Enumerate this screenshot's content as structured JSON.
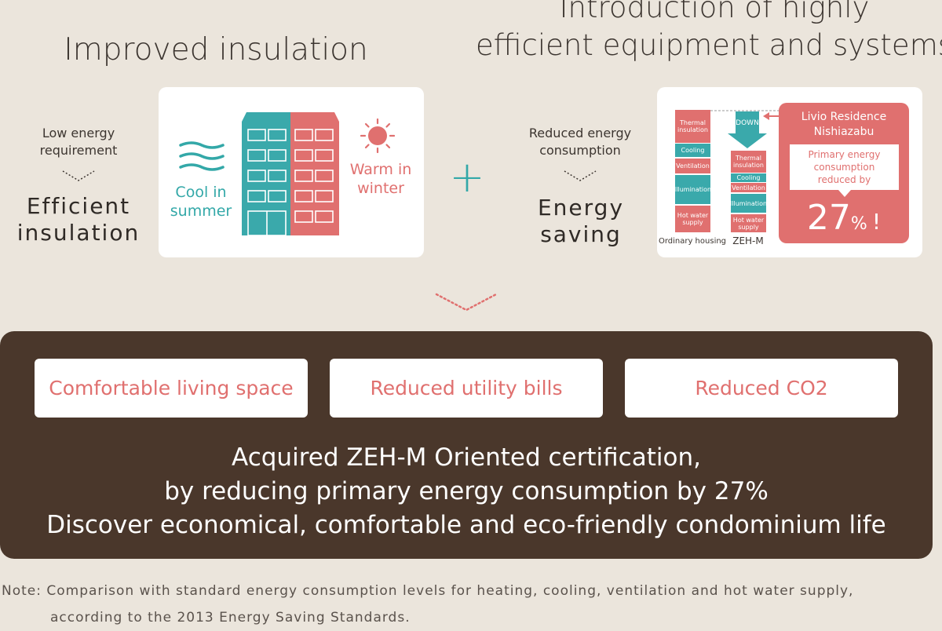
{
  "left_section": {
    "title": "Improved insulation",
    "small_label": [
      "Low energy",
      "requirement"
    ],
    "big_label": [
      "Efficient",
      "insulation"
    ],
    "cool_label": [
      "Cool in",
      "summer"
    ],
    "warm_label": [
      "Warm in",
      "winter"
    ]
  },
  "plus_symbol": "+",
  "right_section": {
    "title": [
      "Introduction of highly",
      "efficient equipment and systems"
    ],
    "small_label": [
      "Reduced energy",
      "consumption"
    ],
    "big_label": [
      "Energy",
      "saving"
    ],
    "ordinary_bars": [
      "Thermal insulation",
      "Cooling",
      "Ventilation",
      "Illumination",
      "Hot water supply"
    ],
    "zehm_bars": [
      "Thermal insulation",
      "Cooling",
      "Ventilation",
      "Illumination",
      "Hot water supply"
    ],
    "down_label": "DOWN",
    "ordinary_caption": "Ordinary housing",
    "zehm_caption": "ZEH-M",
    "residence_name": [
      "Livio Residence",
      "Nishiazabu"
    ],
    "reduction_label": [
      "Primary energy",
      "consumption",
      "reduced by"
    ],
    "reduction_value": "27",
    "reduction_unit": "%",
    "reduction_mark": "!"
  },
  "benefits": [
    "Comfortable living space",
    "Reduced utility bills",
    "Reduced CO2"
  ],
  "main_message": [
    "Acquired ZEH-M Oriented certification,",
    "by reducing primary energy consumption by 27%",
    "Discover economical, comfortable and eco-friendly condominium life"
  ],
  "note": [
    "Note: Comparison with standard energy consumption levels for heating, cooling, ventilation and hot water supply,",
    "according to the 2013 Energy Saving Standards."
  ],
  "colors": {
    "background": "#ebe5dc",
    "teal": "#3aa9ab",
    "coral": "#e0706f",
    "brown": "#4a372b"
  }
}
